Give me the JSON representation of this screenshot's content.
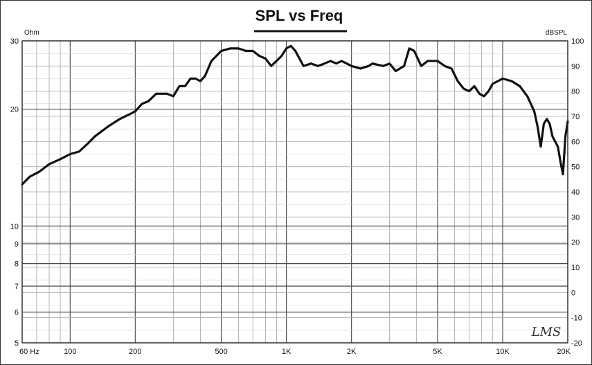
{
  "chart_data": {
    "type": "line",
    "title": "SPL vs Freq",
    "left_unit": "Ohm",
    "right_unit": "dBSPL",
    "xscale": "log",
    "xlim": [
      60,
      20000
    ],
    "grid": true,
    "x_ticks": [
      {
        "value": 60,
        "label": "60 Hz"
      },
      {
        "value": 100,
        "label": "100"
      },
      {
        "value": 200,
        "label": "200"
      },
      {
        "value": 500,
        "label": "500"
      },
      {
        "value": 1000,
        "label": "1K"
      },
      {
        "value": 2000,
        "label": "2K"
      },
      {
        "value": 5000,
        "label": "5K"
      },
      {
        "value": 10000,
        "label": "10K"
      },
      {
        "value": 20000,
        "label": "20K"
      }
    ],
    "left_ticks": [
      {
        "value": 5,
        "label": "5"
      },
      {
        "value": 6,
        "label": "6"
      },
      {
        "value": 7,
        "label": "7"
      },
      {
        "value": 8,
        "label": "8"
      },
      {
        "value": 9,
        "label": "9"
      },
      {
        "value": 10,
        "label": "10"
      },
      {
        "value": 20,
        "label": "20"
      },
      {
        "value": 30,
        "label": "30"
      }
    ],
    "right_ticks": [
      {
        "value": 100,
        "label": "100"
      },
      {
        "value": 90,
        "label": "90"
      },
      {
        "value": 80,
        "label": "80"
      },
      {
        "value": 70,
        "label": "70"
      },
      {
        "value": 60,
        "label": "60"
      },
      {
        "value": 50,
        "label": "50"
      },
      {
        "value": 40,
        "label": "40"
      },
      {
        "value": 30,
        "label": "30"
      },
      {
        "value": 20,
        "label": "20"
      },
      {
        "value": 10,
        "label": "10"
      },
      {
        "value": 0,
        "label": "0"
      },
      {
        "value": -10,
        "label": "-10"
      },
      {
        "value": -20,
        "label": "-20"
      }
    ],
    "series": [
      {
        "axis": "right",
        "color": "#111111",
        "points": [
          [
            60,
            43
          ],
          [
            65,
            46
          ],
          [
            72,
            48
          ],
          [
            80,
            51
          ],
          [
            90,
            53
          ],
          [
            100,
            55
          ],
          [
            110,
            56
          ],
          [
            120,
            59
          ],
          [
            130,
            62
          ],
          [
            150,
            66
          ],
          [
            170,
            69
          ],
          [
            190,
            71
          ],
          [
            200,
            72
          ],
          [
            215,
            75
          ],
          [
            230,
            76
          ],
          [
            250,
            79
          ],
          [
            280,
            79
          ],
          [
            300,
            78
          ],
          [
            320,
            82
          ],
          [
            340,
            82
          ],
          [
            360,
            85
          ],
          [
            380,
            85
          ],
          [
            400,
            84
          ],
          [
            420,
            86
          ],
          [
            450,
            92
          ],
          [
            500,
            96
          ],
          [
            550,
            97
          ],
          [
            600,
            97
          ],
          [
            650,
            96
          ],
          [
            700,
            96
          ],
          [
            750,
            94
          ],
          [
            800,
            93
          ],
          [
            850,
            90
          ],
          [
            900,
            92
          ],
          [
            950,
            94
          ],
          [
            1000,
            97
          ],
          [
            1050,
            98
          ],
          [
            1100,
            96
          ],
          [
            1200,
            90
          ],
          [
            1300,
            91
          ],
          [
            1400,
            90
          ],
          [
            1500,
            91
          ],
          [
            1600,
            92
          ],
          [
            1700,
            91
          ],
          [
            1800,
            92
          ],
          [
            1900,
            91
          ],
          [
            2000,
            90
          ],
          [
            2200,
            89
          ],
          [
            2400,
            90
          ],
          [
            2500,
            91
          ],
          [
            2800,
            90
          ],
          [
            3000,
            91
          ],
          [
            3200,
            88
          ],
          [
            3500,
            90
          ],
          [
            3700,
            97
          ],
          [
            3900,
            96
          ],
          [
            4200,
            90
          ],
          [
            4500,
            92
          ],
          [
            5000,
            92
          ],
          [
            5400,
            90
          ],
          [
            5800,
            89
          ],
          [
            6200,
            84
          ],
          [
            6600,
            81
          ],
          [
            7000,
            80
          ],
          [
            7400,
            82
          ],
          [
            7800,
            79
          ],
          [
            8200,
            78
          ],
          [
            8600,
            80
          ],
          [
            9000,
            83
          ],
          [
            9500,
            84
          ],
          [
            10000,
            85
          ],
          [
            11000,
            84
          ],
          [
            12000,
            82
          ],
          [
            13000,
            78
          ],
          [
            14000,
            72
          ],
          [
            14500,
            66
          ],
          [
            15000,
            58
          ],
          [
            15500,
            67
          ],
          [
            16000,
            69
          ],
          [
            16500,
            67
          ],
          [
            17000,
            62
          ],
          [
            18000,
            58
          ],
          [
            18500,
            52
          ],
          [
            19000,
            47
          ],
          [
            19500,
            62
          ],
          [
            20000,
            68
          ]
        ]
      }
    ],
    "watermark": "LMS"
  }
}
